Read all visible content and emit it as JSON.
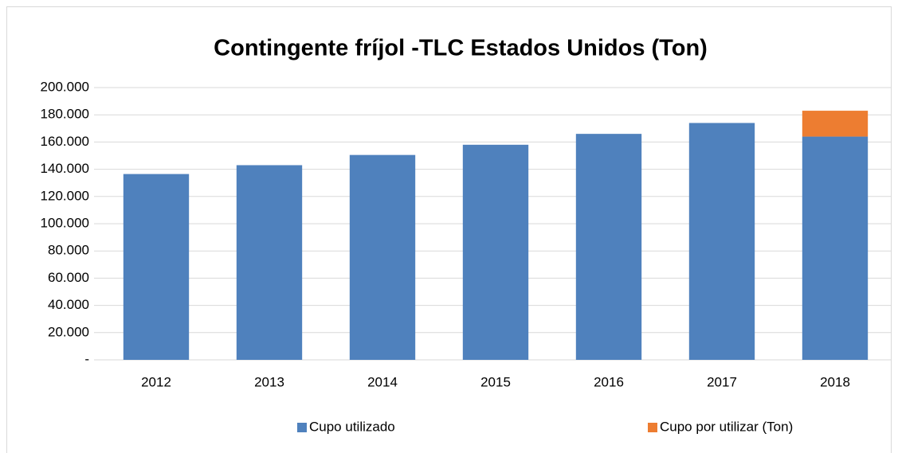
{
  "chart_data": {
    "type": "stacked_bar",
    "title": "Contingente fríjol  -TLC Estados Unidos (Ton)",
    "categories": [
      "2012",
      "2013",
      "2014",
      "2015",
      "2016",
      "2017",
      "2018"
    ],
    "series": [
      {
        "name": "Cupo utilizado",
        "color": "#4f81bd",
        "values": [
          136500,
          143000,
          150500,
          158000,
          166000,
          174000,
          164000
        ]
      },
      {
        "name": "Cupo por utilizar (Ton)",
        "color": "#ed7d31",
        "values": [
          null,
          null,
          null,
          null,
          null,
          null,
          19000
        ]
      }
    ],
    "ylim": [
      0,
      200000
    ],
    "yticks": [
      {
        "value": 0,
        "label": "-"
      },
      {
        "value": 20000,
        "label": "20.000"
      },
      {
        "value": 40000,
        "label": "40.000"
      },
      {
        "value": 60000,
        "label": "60.000"
      },
      {
        "value": 80000,
        "label": "80.000"
      },
      {
        "value": 100000,
        "label": "100.000"
      },
      {
        "value": 120000,
        "label": "120.000"
      },
      {
        "value": 140000,
        "label": "140.000"
      },
      {
        "value": 160000,
        "label": "160.000"
      },
      {
        "value": 180000,
        "label": "180.000"
      },
      {
        "value": 200000,
        "label": "200.000"
      }
    ],
    "grid": true,
    "legend": "bottom"
  }
}
